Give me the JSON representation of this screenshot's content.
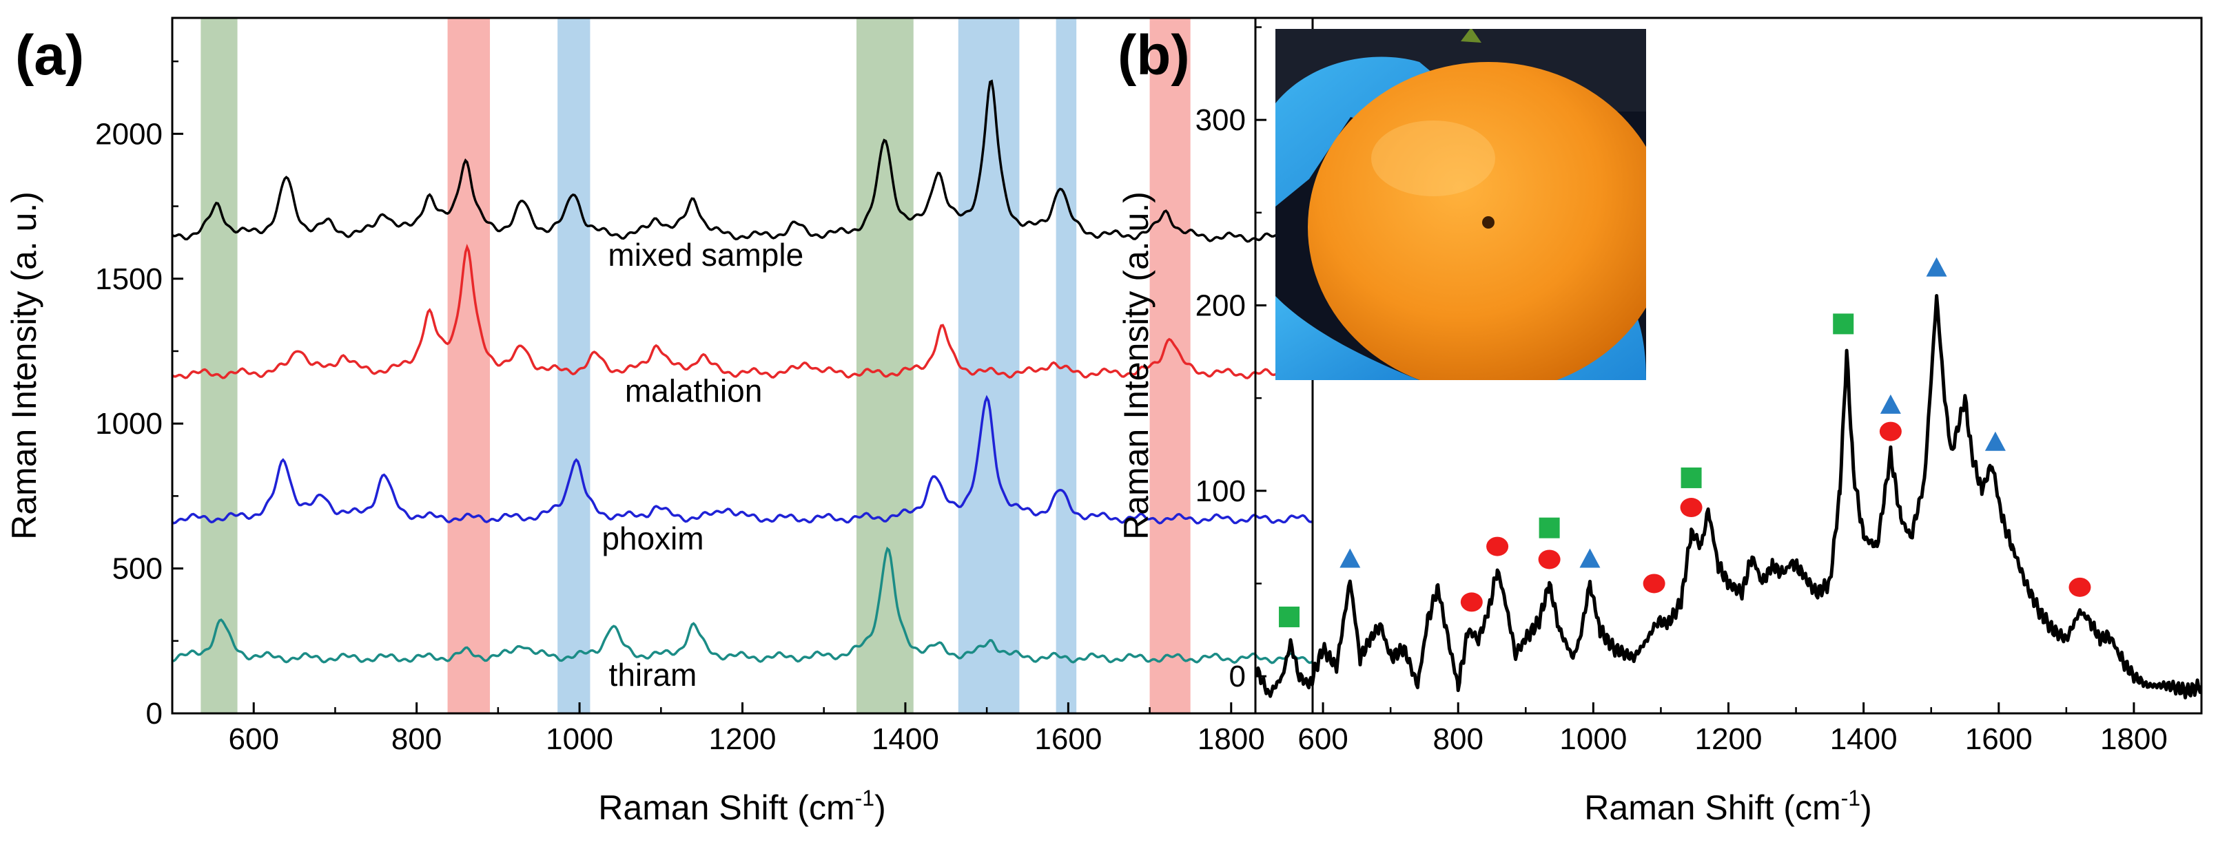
{
  "figure": {
    "panel_a_label": "(a)",
    "panel_b_label": "(b)"
  },
  "chart_data": [
    {
      "type": "line",
      "panel": "(a)",
      "xlabel": "Raman Shift (cm",
      "xlabel_sup": "-1",
      "xlabel_close": ")",
      "ylabel": "Raman Intensity (a. u.)",
      "xlim": [
        500,
        1900
      ],
      "ylim": [
        0,
        2400
      ],
      "xticks": [
        600,
        800,
        1000,
        1200,
        1400,
        1600,
        1800
      ],
      "yticks": [
        0,
        500,
        1000,
        1500,
        2000
      ],
      "bands": [
        {
          "x0": 535,
          "x1": 580,
          "color": "#8fb685"
        },
        {
          "x0": 838,
          "x1": 890,
          "color": "#f4857f"
        },
        {
          "x0": 973,
          "x1": 1013,
          "color": "#86b9e0"
        },
        {
          "x0": 1340,
          "x1": 1410,
          "color": "#8fb685"
        },
        {
          "x0": 1465,
          "x1": 1540,
          "color": "#86b9e0"
        },
        {
          "x0": 1585,
          "x1": 1610,
          "color": "#86b9e0"
        },
        {
          "x0": 1700,
          "x1": 1750,
          "color": "#f4857f"
        }
      ],
      "series": [
        {
          "name": "mixed sample",
          "color": "#000000",
          "baseline": 1640,
          "label_x": 1155,
          "label_y": 1545,
          "peaks": [
            [
              555,
              110
            ],
            [
              640,
              200
            ],
            [
              690,
              40
            ],
            [
              760,
              80
            ],
            [
              815,
              130
            ],
            [
              860,
              260
            ],
            [
              930,
              110
            ],
            [
              993,
              150
            ],
            [
              1095,
              60
            ],
            [
              1140,
              130
            ],
            [
              1265,
              40
            ],
            [
              1375,
              330
            ],
            [
              1440,
              210
            ],
            [
              1505,
              520
            ],
            [
              1590,
              170
            ],
            [
              1720,
              90
            ]
          ]
        },
        {
          "name": "malathion",
          "color": "#e8282a",
          "baseline": 1170,
          "label_x": 1140,
          "label_y": 1075,
          "peaks": [
            [
              655,
              90
            ],
            [
              710,
              60
            ],
            [
              815,
              190
            ],
            [
              862,
              420
            ],
            [
              930,
              80
            ],
            [
              1020,
              60
            ],
            [
              1095,
              100
            ],
            [
              1150,
              60
            ],
            [
              1280,
              40
            ],
            [
              1445,
              160
            ],
            [
              1580,
              40
            ],
            [
              1725,
              130
            ]
          ]
        },
        {
          "name": "phoxim",
          "color": "#1f22d6",
          "baseline": 670,
          "label_x": 1090,
          "label_y": 565,
          "peaks": [
            [
              637,
              200
            ],
            [
              685,
              70
            ],
            [
              760,
              150
            ],
            [
              995,
              210
            ],
            [
              1095,
              40
            ],
            [
              1180,
              40
            ],
            [
              1435,
              140
            ],
            [
              1500,
              410
            ],
            [
              1590,
              90
            ]
          ]
        },
        {
          "name": "thiram",
          "color": "#1b8c86",
          "baseline": 190,
          "label_x": 1090,
          "label_y": 95,
          "peaks": [
            [
              560,
              130
            ],
            [
              860,
              20
            ],
            [
              930,
              50
            ],
            [
              1040,
              110
            ],
            [
              1140,
              110
            ],
            [
              1378,
              380
            ],
            [
              1440,
              30
            ],
            [
              1505,
              60
            ]
          ]
        }
      ]
    },
    {
      "type": "line",
      "panel": "(b)",
      "xlabel": "Raman Shift (cm",
      "xlabel_sup": "-1",
      "xlabel_close": ")",
      "ylabel": "Raman Intensity (a. u.)",
      "xlim": [
        500,
        1900
      ],
      "ylim": [
        -20,
        355
      ],
      "xticks": [
        600,
        800,
        1000,
        1200,
        1400,
        1600,
        1800
      ],
      "yticks": [
        0,
        100,
        200,
        300
      ],
      "series": [
        {
          "name": "orange surface spectrum",
          "color": "#000000",
          "points": [
            [
              500,
              5
            ],
            [
              520,
              -10
            ],
            [
              540,
              0
            ],
            [
              552,
              18
            ],
            [
              565,
              0
            ],
            [
              580,
              -5
            ],
            [
              600,
              15
            ],
            [
              620,
              5
            ],
            [
              640,
              52
            ],
            [
              655,
              10
            ],
            [
              670,
              20
            ],
            [
              685,
              28
            ],
            [
              700,
              10
            ],
            [
              720,
              15
            ],
            [
              740,
              -5
            ],
            [
              755,
              30
            ],
            [
              770,
              48
            ],
            [
              785,
              20
            ],
            [
              800,
              -5
            ],
            [
              815,
              25
            ],
            [
              830,
              20
            ],
            [
              845,
              35
            ],
            [
              858,
              58
            ],
            [
              870,
              40
            ],
            [
              885,
              12
            ],
            [
              900,
              20
            ],
            [
              920,
              30
            ],
            [
              935,
              50
            ],
            [
              950,
              25
            ],
            [
              970,
              10
            ],
            [
              980,
              20
            ],
            [
              995,
              50
            ],
            [
              1010,
              25
            ],
            [
              1030,
              15
            ],
            [
              1060,
              10
            ],
            [
              1080,
              20
            ],
            [
              1095,
              30
            ],
            [
              1110,
              28
            ],
            [
              1130,
              40
            ],
            [
              1145,
              78
            ],
            [
              1160,
              70
            ],
            [
              1170,
              90
            ],
            [
              1185,
              60
            ],
            [
              1200,
              50
            ],
            [
              1220,
              45
            ],
            [
              1235,
              65
            ],
            [
              1250,
              50
            ],
            [
              1265,
              60
            ],
            [
              1280,
              55
            ],
            [
              1295,
              62
            ],
            [
              1310,
              55
            ],
            [
              1330,
              45
            ],
            [
              1350,
              50
            ],
            [
              1365,
              100
            ],
            [
              1375,
              175
            ],
            [
              1385,
              110
            ],
            [
              1400,
              75
            ],
            [
              1420,
              70
            ],
            [
              1440,
              120
            ],
            [
              1455,
              85
            ],
            [
              1470,
              75
            ],
            [
              1490,
              105
            ],
            [
              1508,
              205
            ],
            [
              1520,
              150
            ],
            [
              1530,
              120
            ],
            [
              1540,
              135
            ],
            [
              1550,
              150
            ],
            [
              1560,
              120
            ],
            [
              1575,
              100
            ],
            [
              1590,
              115
            ],
            [
              1605,
              85
            ],
            [
              1620,
              70
            ],
            [
              1640,
              50
            ],
            [
              1660,
              35
            ],
            [
              1680,
              25
            ],
            [
              1700,
              20
            ],
            [
              1720,
              35
            ],
            [
              1735,
              30
            ],
            [
              1750,
              20
            ],
            [
              1765,
              22
            ],
            [
              1780,
              10
            ],
            [
              1800,
              0
            ],
            [
              1820,
              -5
            ],
            [
              1850,
              -5
            ],
            [
              1880,
              -8
            ],
            [
              1900,
              -5
            ]
          ]
        }
      ],
      "markers": [
        {
          "shape": "square",
          "color": "#20b14a",
          "x": 550,
          "y": 32
        },
        {
          "shape": "triangle",
          "color": "#2a7bc9",
          "x": 640,
          "y": 63
        },
        {
          "shape": "circle",
          "color": "#ee1c1c",
          "x": 820,
          "y": 40
        },
        {
          "shape": "circle",
          "color": "#ee1c1c",
          "x": 858,
          "y": 70
        },
        {
          "shape": "square",
          "color": "#20b14a",
          "x": 935,
          "y": 80
        },
        {
          "shape": "circle",
          "color": "#ee1c1c",
          "x": 935,
          "y": 63
        },
        {
          "shape": "triangle",
          "color": "#2a7bc9",
          "x": 995,
          "y": 63
        },
        {
          "shape": "circle",
          "color": "#ee1c1c",
          "x": 1090,
          "y": 50
        },
        {
          "shape": "square",
          "color": "#20b14a",
          "x": 1145,
          "y": 107
        },
        {
          "shape": "circle",
          "color": "#ee1c1c",
          "x": 1145,
          "y": 91
        },
        {
          "shape": "square",
          "color": "#20b14a",
          "x": 1370,
          "y": 190
        },
        {
          "shape": "triangle",
          "color": "#2a7bc9",
          "x": 1440,
          "y": 146
        },
        {
          "shape": "circle",
          "color": "#ee1c1c",
          "x": 1440,
          "y": 132
        },
        {
          "shape": "triangle",
          "color": "#2a7bc9",
          "x": 1508,
          "y": 220
        },
        {
          "shape": "triangle",
          "color": "#2a7bc9",
          "x": 1595,
          "y": 126
        },
        {
          "shape": "circle",
          "color": "#ee1c1c",
          "x": 1720,
          "y": 48
        }
      ],
      "inset": {
        "subject": "orange fruit held in blue-gloved hand"
      }
    }
  ]
}
